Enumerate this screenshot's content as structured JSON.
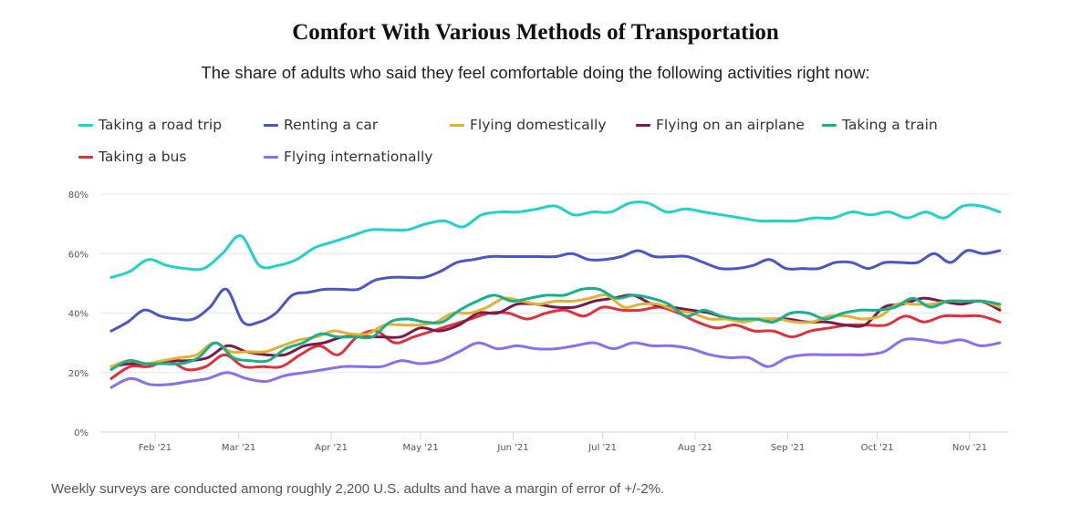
{
  "title": "Comfort With Various Methods of Transportation",
  "subtitle": "The share of adults who said they feel comfortable doing the following activities right now:",
  "footer": "Weekly surveys are conducted among roughly 2,200 U.S. adults and have a margin of error of +/-2%.",
  "chart_data": {
    "type": "line",
    "title": "Comfort With Various Methods of Transportation",
    "subtitle": "The share of adults who said they feel comfortable doing the following activities right now:",
    "xlabel": "",
    "ylabel": "",
    "ylim": [
      0,
      80
    ],
    "yticks": [
      "0%",
      "20%",
      "40%",
      "60%",
      "80%"
    ],
    "ytick_values": [
      0,
      20,
      40,
      60,
      80
    ],
    "xticks": [
      "Feb '21",
      "Mar '21",
      "Apr '21",
      "May '21",
      "Jun '21",
      "Jul '21",
      "Aug '21",
      "Sep '21",
      "Oct '21",
      "Nov '21"
    ],
    "xtick_days": [
      14,
      42,
      73,
      103,
      134,
      164,
      195,
      226,
      256,
      287
    ],
    "x_first_day": 0,
    "x_step_days": 7,
    "x_range_days": [
      -4,
      301
    ],
    "grid": true,
    "legend": "top",
    "series": [
      {
        "name": "Taking a road trip",
        "color": "#1fd3c6",
        "values": [
          52,
          54,
          58,
          56,
          55,
          55,
          60,
          66,
          56,
          56,
          58,
          62,
          64,
          66,
          68,
          68,
          68,
          70,
          71,
          69,
          73,
          74,
          74,
          75,
          76,
          73,
          74,
          74,
          77,
          77,
          74,
          75,
          74,
          73,
          72,
          71,
          71,
          71,
          72,
          72,
          74,
          73,
          74,
          72,
          74,
          72,
          76,
          76,
          74
        ]
      },
      {
        "name": "Renting a car",
        "color": "#4b55c9",
        "values": [
          34,
          37,
          41,
          39,
          38,
          38,
          42,
          48,
          37,
          37,
          40,
          46,
          47,
          48,
          48,
          48,
          51,
          52,
          52,
          52,
          54,
          57,
          58,
          59,
          59,
          59,
          59,
          59,
          60,
          58,
          58,
          59,
          61,
          59,
          59,
          59,
          57,
          55,
          55,
          56,
          58,
          55,
          55,
          55,
          57,
          57,
          55,
          57,
          57,
          57,
          60,
          57,
          61,
          60,
          61
        ]
      },
      {
        "name": "Flying domestically",
        "color": "#e2b12f",
        "values": [
          22,
          24,
          23,
          24,
          25,
          26,
          30,
          27,
          27,
          27,
          29,
          31,
          32,
          34,
          33,
          33,
          36,
          36,
          36,
          37,
          40,
          40,
          42,
          45,
          44,
          43,
          44,
          44,
          45,
          46,
          42,
          43,
          43,
          41,
          40,
          38,
          38,
          37,
          38,
          38,
          37,
          37,
          39,
          39,
          38,
          39,
          43,
          43,
          43,
          44,
          44,
          44,
          42
        ]
      },
      {
        "name": "Flying on an airplane",
        "color": "#7b1a4a",
        "values": [
          22,
          23,
          23,
          24,
          24,
          25,
          29,
          27,
          26,
          26,
          29,
          30,
          32,
          32,
          32,
          32,
          35,
          34,
          36,
          40,
          40,
          43,
          43,
          42,
          42,
          44,
          45,
          46,
          43,
          42,
          41,
          40,
          38,
          38,
          38,
          38,
          37,
          37,
          36,
          36,
          42,
          43,
          45,
          44,
          43,
          44,
          41
        ]
      },
      {
        "name": "Taking a train",
        "color": "#17b08b",
        "values": [
          21,
          24,
          23,
          23,
          23,
          25,
          30,
          25,
          24,
          24,
          28,
          30,
          33,
          32,
          32,
          32,
          37,
          38,
          37,
          37,
          41,
          44,
          46,
          44,
          45,
          46,
          46,
          48,
          48,
          45,
          46,
          45,
          43,
          39,
          41,
          39,
          38,
          38,
          37,
          40,
          40,
          38,
          40,
          41,
          41,
          42,
          45,
          42,
          44,
          44,
          44,
          43
        ]
      },
      {
        "name": "Taking a bus",
        "color": "#e1303a",
        "values": [
          18,
          22,
          22,
          24,
          21,
          22,
          26,
          22,
          22,
          22,
          26,
          29,
          26,
          32,
          34,
          30,
          32,
          34,
          36,
          38,
          40,
          40,
          38,
          40,
          41,
          39,
          42,
          41,
          41,
          42,
          40,
          37,
          35,
          36,
          34,
          34,
          32,
          34,
          35,
          36,
          36,
          36,
          39,
          37,
          39,
          39,
          39,
          37
        ]
      },
      {
        "name": "Flying internationally",
        "color": "#8a6df2",
        "values": [
          15,
          18,
          16,
          16,
          17,
          18,
          20,
          18,
          17,
          19,
          20,
          21,
          22,
          22,
          22,
          24,
          23,
          24,
          27,
          30,
          28,
          29,
          28,
          28,
          29,
          30,
          28,
          30,
          29,
          29,
          28,
          26,
          25,
          25,
          22,
          25,
          26,
          26,
          26,
          26,
          27,
          31,
          31,
          30,
          31,
          29,
          30
        ]
      }
    ]
  }
}
